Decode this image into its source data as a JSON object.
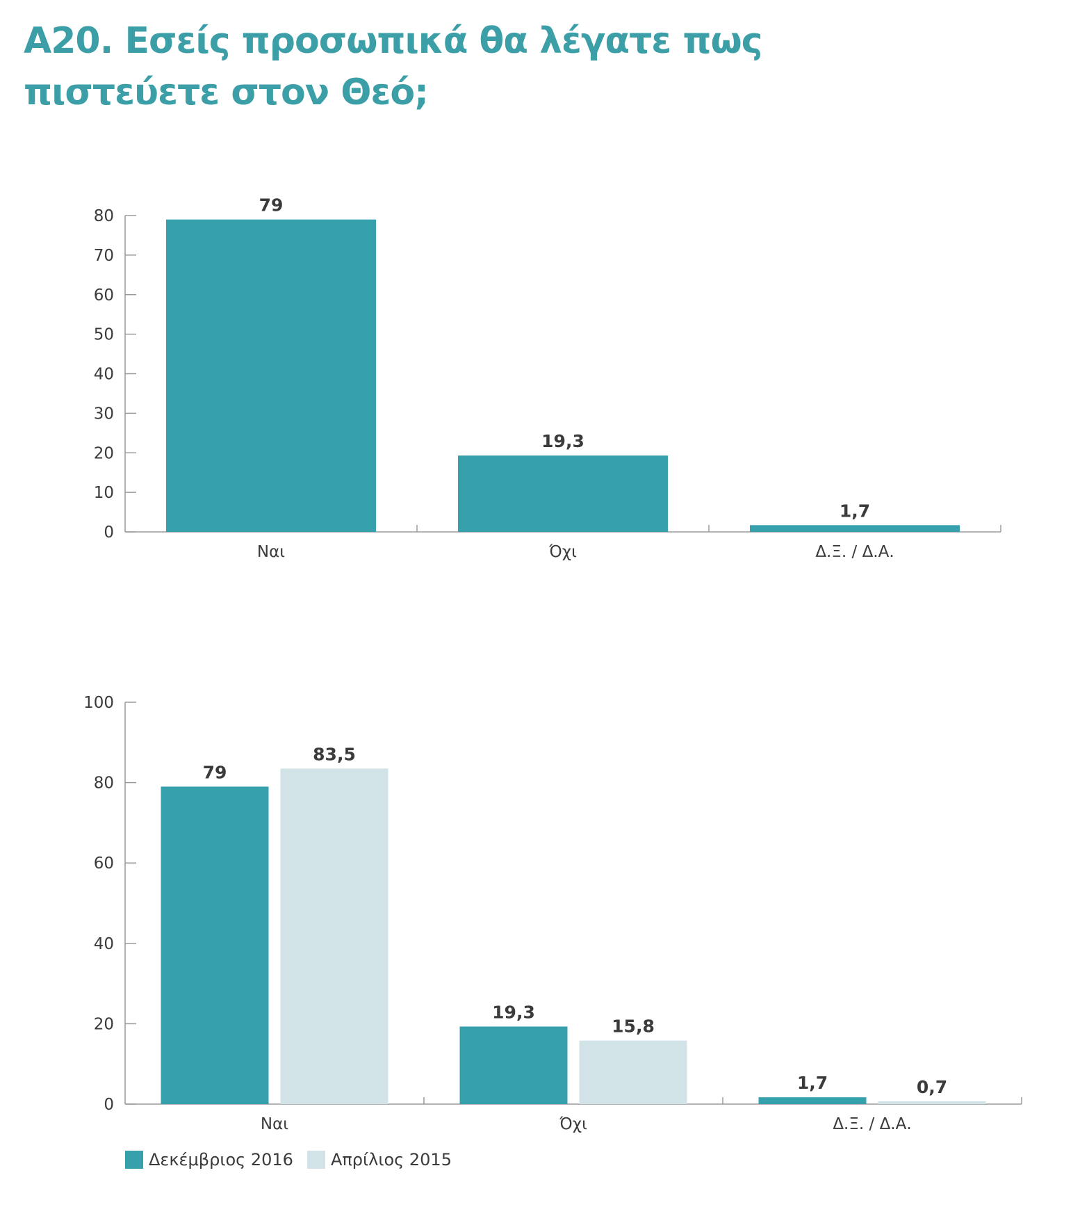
{
  "title": {
    "line1": "Α20. Εσείς προσωπικά θα λέγατε πως",
    "line2": "πιστεύετε στον Θεό;"
  },
  "colors": {
    "title": "#3c9fa7",
    "dec2016": "#36a0ac",
    "apr2015": "#d2e3e7",
    "text": "#3b3b3b",
    "axis": "#9a9a9a"
  },
  "chart_data": [
    {
      "type": "bar",
      "title": "",
      "xlabel": "",
      "ylabel": "",
      "categories": [
        "Ναι",
        "Όχι",
        "Δ.Ξ. / Δ.Α."
      ],
      "series": [
        {
          "values": [
            79,
            19.3,
            1.7
          ],
          "labels": [
            "79",
            "19,3",
            "1,7"
          ]
        }
      ],
      "ylim": [
        0,
        80
      ],
      "yticks": [
        0,
        10,
        20,
        30,
        40,
        50,
        60,
        70,
        80
      ],
      "grid": false
    },
    {
      "type": "bar",
      "title": "",
      "xlabel": "",
      "ylabel": "",
      "categories": [
        "Ναι",
        "Όχι",
        "Δ.Ξ. / Δ.Α."
      ],
      "series": [
        {
          "name": "Δεκέμβριος 2016",
          "values": [
            79,
            19.3,
            1.7
          ],
          "labels": [
            "79",
            "19,3",
            "1,7"
          ]
        },
        {
          "name": "Απρίλιος 2015",
          "values": [
            83.5,
            15.8,
            0.7
          ],
          "labels": [
            "83,5",
            "15,8",
            "0,7"
          ]
        }
      ],
      "ylim": [
        0,
        100
      ],
      "yticks": [
        0,
        20,
        40,
        60,
        80,
        100
      ],
      "grid": false,
      "legend": "bottom-left"
    }
  ]
}
